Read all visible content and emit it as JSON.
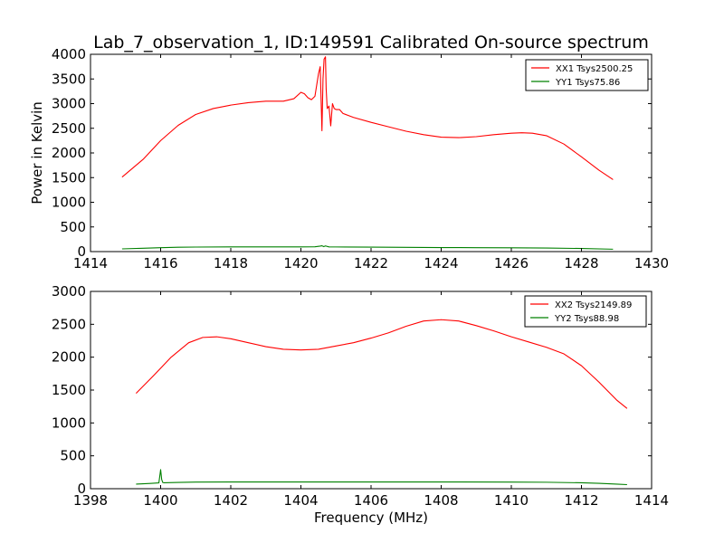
{
  "chart_data": [
    {
      "type": "line",
      "title": "Lab_7_observation_1, ID:149591 Calibrated On-source spectrum",
      "xlabel": "",
      "ylabel": "Power in Kelvin",
      "xlim": [
        1414,
        1430
      ],
      "ylim": [
        0,
        4000
      ],
      "xticks": [
        1414,
        1416,
        1418,
        1420,
        1422,
        1424,
        1426,
        1428,
        1430
      ],
      "yticks": [
        0,
        500,
        1000,
        1500,
        2000,
        2500,
        3000,
        3500,
        4000
      ],
      "legend_position": "top-right",
      "series": [
        {
          "name": "XX1 Tsys2500.25",
          "color": "#ff0000",
          "x": [
            1414.9,
            1415.5,
            1416.0,
            1416.5,
            1417.0,
            1417.5,
            1418.0,
            1418.5,
            1419.0,
            1419.5,
            1419.8,
            1420.0,
            1420.1,
            1420.2,
            1420.3,
            1420.4,
            1420.5,
            1420.55,
            1420.6,
            1420.63,
            1420.66,
            1420.7,
            1420.72,
            1420.75,
            1420.8,
            1420.85,
            1420.9,
            1420.95,
            1421.0,
            1421.1,
            1421.2,
            1421.5,
            1422.0,
            1422.5,
            1423.0,
            1423.5,
            1424.0,
            1424.5,
            1425.0,
            1425.5,
            1426.0,
            1426.3,
            1426.6,
            1427.0,
            1427.5,
            1428.0,
            1428.5,
            1428.9
          ],
          "values": [
            1510,
            1870,
            2250,
            2560,
            2780,
            2900,
            2970,
            3020,
            3050,
            3050,
            3100,
            3230,
            3200,
            3120,
            3080,
            3150,
            3600,
            3750,
            2450,
            3500,
            3900,
            3950,
            3300,
            2900,
            2950,
            2550,
            3000,
            2900,
            2880,
            2880,
            2800,
            2720,
            2620,
            2530,
            2440,
            2370,
            2320,
            2310,
            2330,
            2370,
            2400,
            2410,
            2400,
            2350,
            2180,
            1920,
            1650,
            1460
          ]
        },
        {
          "name": "YY1 Tsys75.86",
          "color": "#008000",
          "x": [
            1414.9,
            1415.5,
            1416.0,
            1416.5,
            1417.0,
            1418.0,
            1419.0,
            1420.0,
            1420.4,
            1420.55,
            1420.6,
            1420.65,
            1420.7,
            1420.8,
            1421.0,
            1422.0,
            1423.0,
            1424.0,
            1425.0,
            1426.0,
            1427.0,
            1428.0,
            1428.9
          ],
          "values": [
            55,
            68,
            80,
            88,
            92,
            95,
            96,
            95,
            98,
            112,
            118,
            100,
            115,
            95,
            94,
            90,
            86,
            82,
            80,
            77,
            72,
            63,
            48
          ]
        }
      ]
    },
    {
      "type": "line",
      "title": "",
      "xlabel": "Frequency (MHz)",
      "ylabel": "",
      "xlim": [
        1398,
        1414
      ],
      "ylim": [
        0,
        3000
      ],
      "xticks": [
        1398,
        1400,
        1402,
        1404,
        1406,
        1408,
        1410,
        1412,
        1414
      ],
      "yticks": [
        0,
        500,
        1000,
        1500,
        2000,
        2500,
        3000
      ],
      "legend_position": "top-right",
      "series": [
        {
          "name": "XX2 Tsys2149.89",
          "color": "#ff0000",
          "x": [
            1399.3,
            1399.8,
            1400.3,
            1400.8,
            1401.2,
            1401.6,
            1402.0,
            1402.5,
            1403.0,
            1403.5,
            1404.0,
            1404.5,
            1405.0,
            1405.5,
            1406.0,
            1406.5,
            1407.0,
            1407.5,
            1408.0,
            1408.5,
            1409.0,
            1409.5,
            1410.0,
            1410.5,
            1411.0,
            1411.5,
            1412.0,
            1412.5,
            1413.0,
            1413.3
          ],
          "values": [
            1450,
            1720,
            2000,
            2220,
            2300,
            2310,
            2280,
            2220,
            2160,
            2120,
            2110,
            2120,
            2170,
            2220,
            2290,
            2370,
            2470,
            2550,
            2570,
            2550,
            2480,
            2400,
            2310,
            2230,
            2150,
            2050,
            1870,
            1620,
            1350,
            1220
          ]
        },
        {
          "name": "YY2 Tsys88.98",
          "color": "#008000",
          "x": [
            1399.3,
            1399.7,
            1399.95,
            1400.0,
            1400.03,
            1400.06,
            1400.1,
            1400.5,
            1401.0,
            1402.0,
            1404.0,
            1406.0,
            1408.0,
            1410.0,
            1411.0,
            1412.0,
            1412.5,
            1413.0,
            1413.3
          ],
          "values": [
            70,
            80,
            88,
            290,
            140,
            95,
            90,
            95,
            100,
            103,
            103,
            103,
            103,
            100,
            98,
            90,
            82,
            70,
            62
          ]
        }
      ]
    }
  ]
}
